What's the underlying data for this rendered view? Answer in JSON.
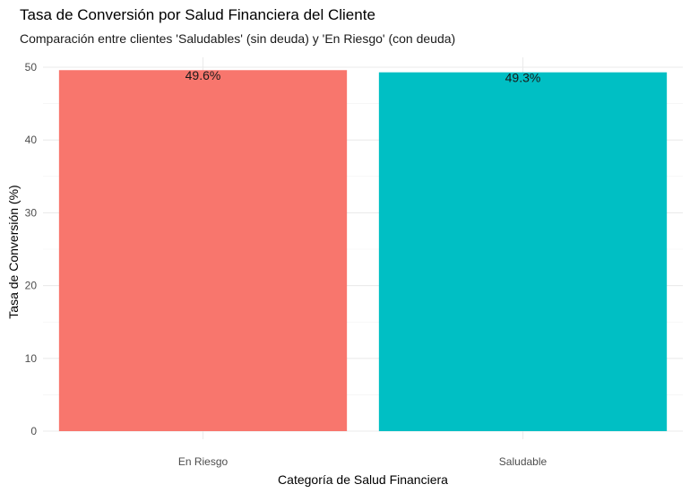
{
  "chart_data": {
    "type": "bar",
    "title": "Tasa de Conversión por Salud Financiera del Cliente",
    "subtitle": "Comparación entre clientes 'Saludables' (sin deuda) y 'En Riesgo' (con deuda)",
    "xlabel": "Categoría de Salud Financiera",
    "ylabel": "Tasa de Conversión (%)",
    "categories": [
      "En Riesgo",
      "Saludable"
    ],
    "values": [
      49.6,
      49.3
    ],
    "data_labels": [
      "49.6%",
      "49.3%"
    ],
    "colors": [
      "#F8766D",
      "#00BFC4"
    ],
    "ylim": [
      0,
      50
    ],
    "yticks": [
      0,
      10,
      20,
      30,
      40,
      50
    ],
    "grid": true,
    "legend": "none"
  }
}
